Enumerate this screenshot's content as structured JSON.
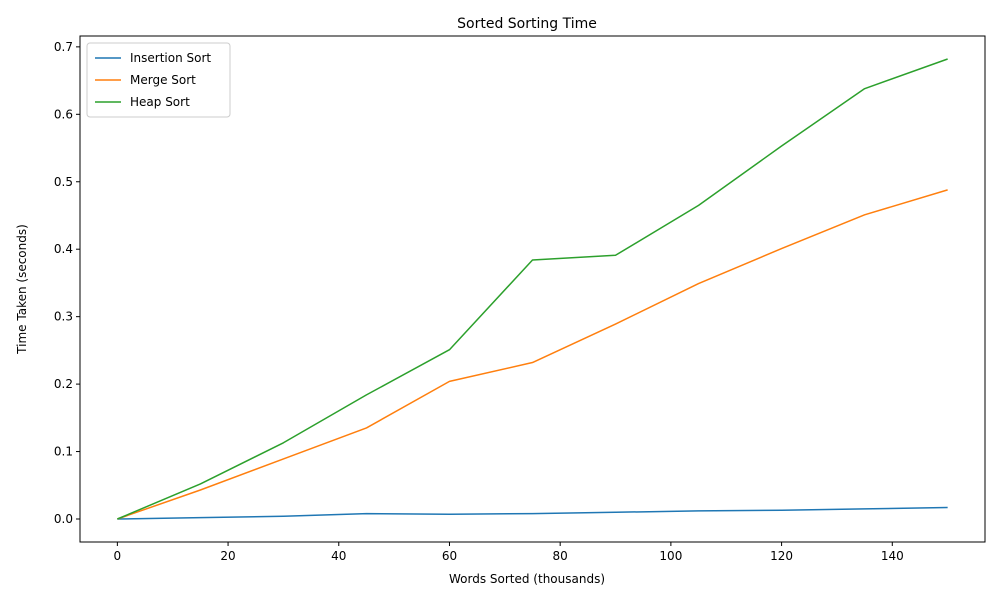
{
  "chart_data": {
    "type": "line",
    "title": "Sorted Sorting Time",
    "xlabel": "Words Sorted (thousands)",
    "ylabel": "Time Taken (seconds)",
    "x": [
      0,
      15,
      30,
      45,
      60,
      75,
      90,
      105,
      120,
      135,
      150
    ],
    "xlim": [
      -6.75,
      156.75
    ],
    "ylim": [
      -0.0341,
      0.7161
    ],
    "xticks": [
      0,
      20,
      40,
      60,
      80,
      100,
      120,
      140
    ],
    "yticks": [
      0.0,
      0.1,
      0.2,
      0.3,
      0.4,
      0.5,
      0.6,
      0.7
    ],
    "xtick_labels": [
      "0",
      "20",
      "40",
      "60",
      "80",
      "100",
      "120",
      "140"
    ],
    "ytick_labels": [
      "0.0",
      "0.1",
      "0.2",
      "0.3",
      "0.4",
      "0.5",
      "0.6",
      "0.7"
    ],
    "grid": false,
    "legend": "top-left",
    "series": [
      {
        "name": "Insertion Sort",
        "color": "#1f77b4",
        "values": [
          0.0,
          0.002,
          0.004,
          0.008,
          0.007,
          0.008,
          0.01,
          0.012,
          0.013,
          0.015,
          0.017
        ]
      },
      {
        "name": "Merge Sort",
        "color": "#ff7f0e",
        "values": [
          0.0,
          0.043,
          0.089,
          0.135,
          0.204,
          0.232,
          0.289,
          0.349,
          0.401,
          0.451,
          0.488
        ]
      },
      {
        "name": "Heap Sort",
        "color": "#2ca02c",
        "values": [
          0.0,
          0.052,
          0.113,
          0.184,
          0.251,
          0.384,
          0.391,
          0.465,
          0.553,
          0.638,
          0.682
        ]
      }
    ]
  }
}
